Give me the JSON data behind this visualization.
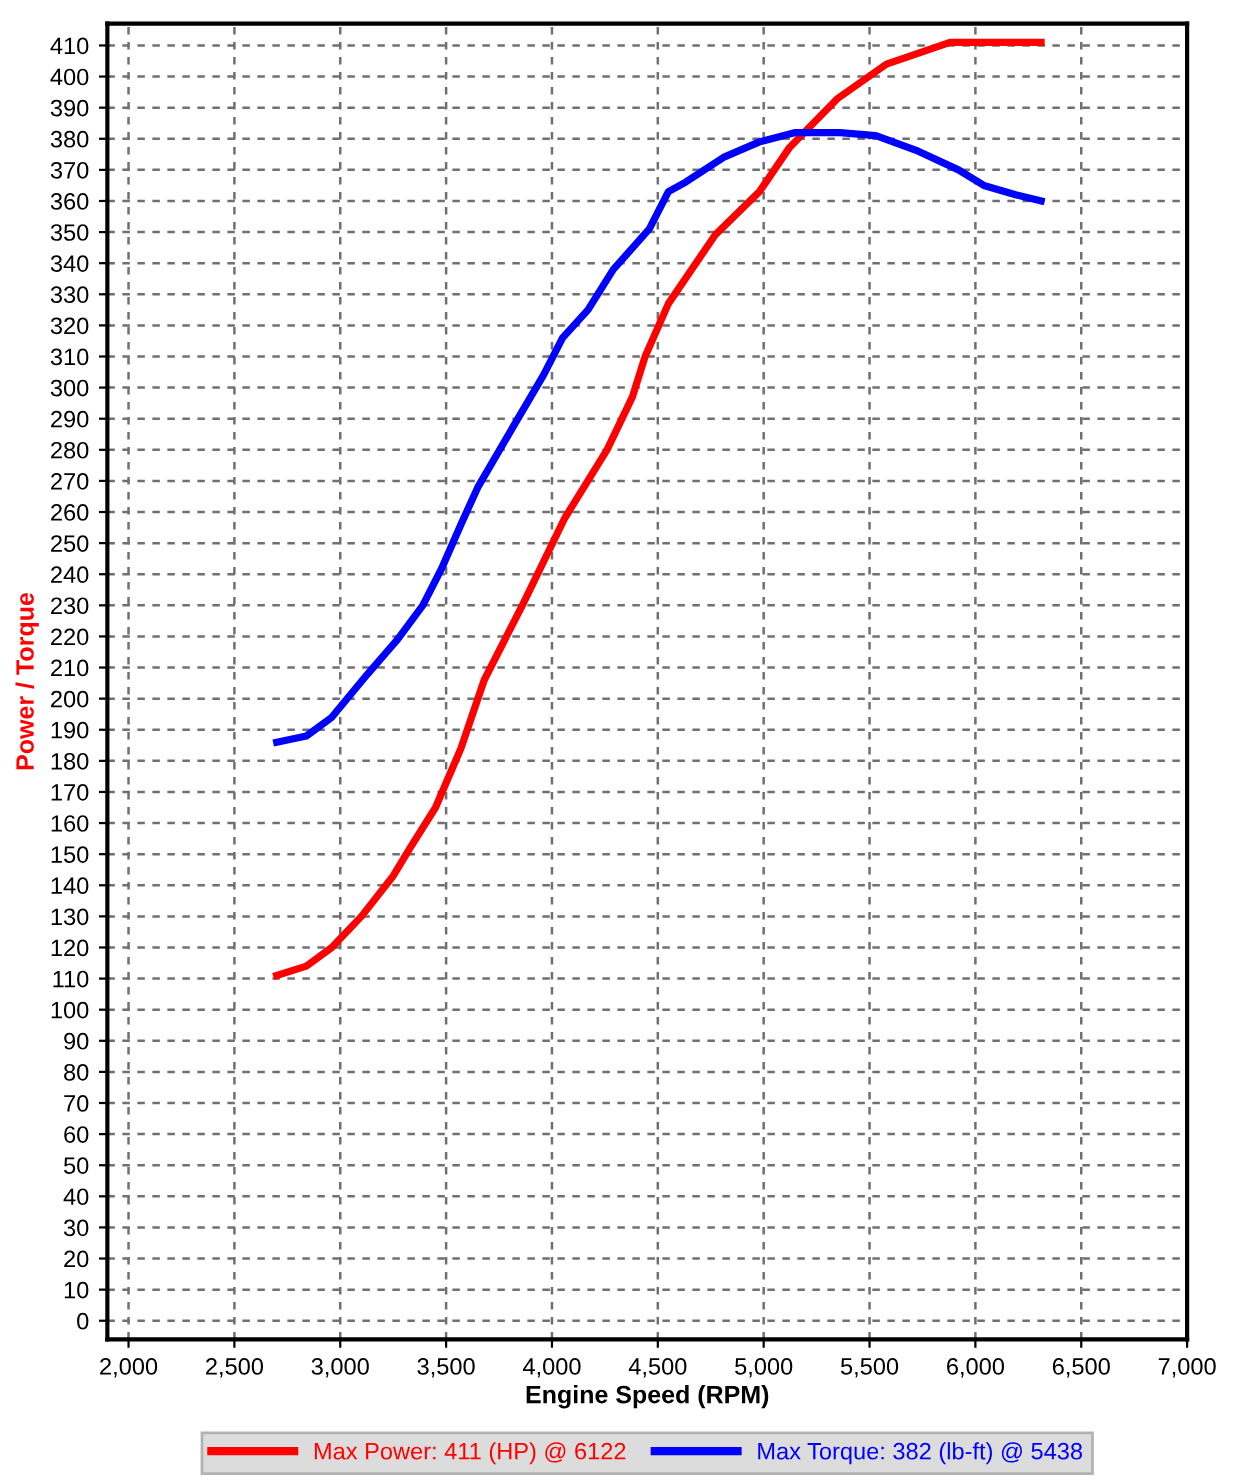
{
  "chart_data": {
    "type": "line",
    "xlabel": "Engine Speed (RPM)",
    "ylabel": "Power / Torque",
    "xlim": [
      1900,
      7000
    ],
    "ylim": [
      -6,
      417
    ],
    "xticks": [
      {
        "value": 2000,
        "label": "2,000"
      },
      {
        "value": 2500,
        "label": "2,500"
      },
      {
        "value": 3000,
        "label": "3,000"
      },
      {
        "value": 3500,
        "label": "3,500"
      },
      {
        "value": 4000,
        "label": "4,000"
      },
      {
        "value": 4500,
        "label": "4,500"
      },
      {
        "value": 5000,
        "label": "5,000"
      },
      {
        "value": 5500,
        "label": "5,500"
      },
      {
        "value": 6000,
        "label": "6,000"
      },
      {
        "value": 6500,
        "label": "6,500"
      },
      {
        "value": 7000,
        "label": "7,000"
      }
    ],
    "yticks": [
      0,
      10,
      20,
      30,
      40,
      50,
      60,
      70,
      80,
      90,
      100,
      110,
      120,
      130,
      140,
      150,
      160,
      170,
      180,
      190,
      200,
      210,
      220,
      230,
      240,
      250,
      260,
      270,
      280,
      290,
      300,
      310,
      320,
      330,
      340,
      350,
      360,
      370,
      380,
      390,
      400,
      410
    ],
    "grid": true,
    "legend": "bottom",
    "marker": "none",
    "line_style": "solid",
    "series": [
      {
        "name": "Max Power: 411 (HP) @ 6122",
        "color": "#ff0000",
        "x": [
          2700,
          2840,
          2960,
          3100,
          3250,
          3330,
          3450,
          3570,
          3680,
          3860,
          4060,
          4260,
          4380,
          4440,
          4550,
          4770,
          4980,
          5120,
          5350,
          5580,
          5880,
          6070,
          6310
        ],
        "values": [
          111,
          114,
          120,
          130,
          143,
          152,
          165,
          184,
          206,
          230,
          258,
          280,
          297,
          310,
          327,
          349,
          363,
          377,
          393,
          404,
          411,
          411,
          411
        ]
      },
      {
        "name": "Max Torque: 382 (lb-ft) @ 5438",
        "color": "#0000ff",
        "x": [
          2700,
          2840,
          2960,
          3130,
          3270,
          3390,
          3480,
          3570,
          3650,
          3710,
          3830,
          3960,
          4050,
          4170,
          4290,
          4460,
          4550,
          4630,
          4810,
          4980,
          5150,
          5360,
          5530,
          5730,
          5920,
          6040,
          6190,
          6310
        ],
        "values": [
          186,
          188,
          194,
          208,
          219,
          230,
          242,
          256,
          268,
          275,
          289,
          304,
          316,
          325,
          338,
          351,
          363,
          366,
          374,
          379,
          382,
          382,
          381,
          376,
          370,
          365,
          362,
          360
        ]
      }
    ]
  }
}
